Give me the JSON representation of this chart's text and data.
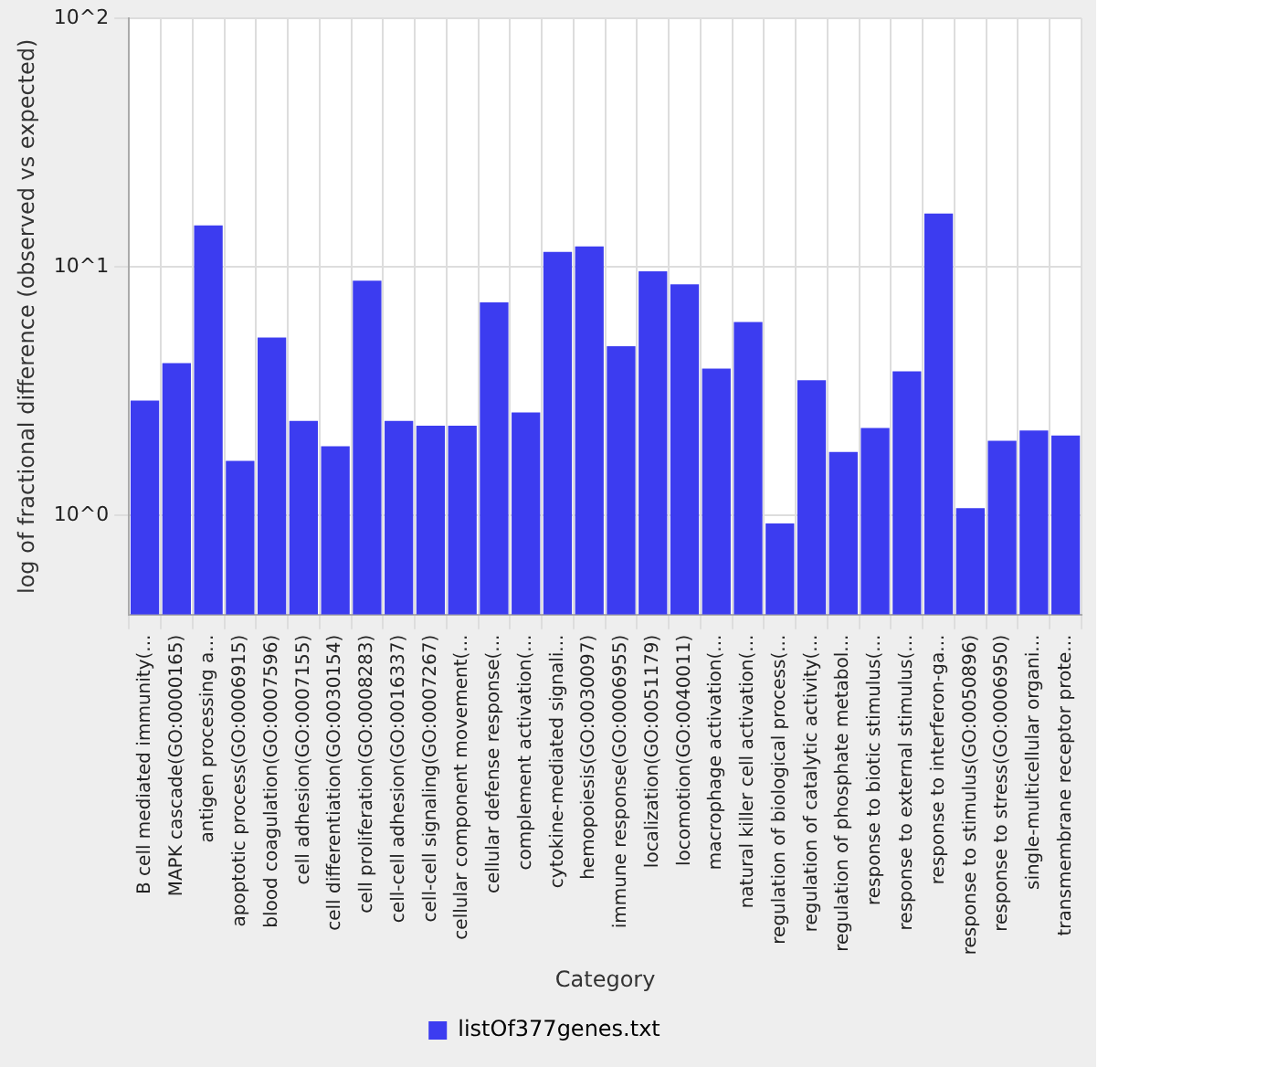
{
  "chart_data": {
    "type": "bar",
    "xlabel": "Category",
    "ylabel": "log of fractional difference (observed vs expected)",
    "categories": [
      "B cell mediated immunity(...",
      "MAPK cascade(GO:0000165)",
      "antigen processing a...",
      "apoptotic process(GO:0006915)",
      "blood coagulation(GO:0007596)",
      "cell adhesion(GO:0007155)",
      "cell differentiation(GO:0030154)",
      "cell proliferation(GO:0008283)",
      "cell-cell adhesion(GO:0016337)",
      "cell-cell signaling(GO:0007267)",
      "cellular component movement(...",
      "cellular defense response(...",
      "complement activation(...",
      "cytokine-mediated signali...",
      "hemopoiesis(GO:0030097)",
      "immune response(GO:0006955)",
      "localization(GO:0051179)",
      "locomotion(GO:0040011)",
      "macrophage activation(...",
      "natural killer cell activation(...",
      "regulation of biological process(...",
      "regulation of catalytic activity(...",
      "regulation of phosphate metabol...",
      "response to biotic stimulus(...",
      "response to external stimulus(...",
      "response to interferon-ga...",
      "response to stimulus(GO:0050896)",
      "response to stress(GO:0006950)",
      "single-multicellular organi...",
      "transmembrane receptor prote..."
    ],
    "series": [
      {
        "name": "listOf377genes.txt",
        "color": "#3c3cf0",
        "values": [
          2.9,
          4.1,
          14.7,
          1.66,
          5.2,
          2.4,
          1.9,
          8.8,
          2.4,
          2.3,
          2.3,
          7.2,
          2.6,
          11.5,
          12.1,
          4.8,
          9.6,
          8.5,
          3.9,
          6.0,
          0.93,
          3.5,
          1.8,
          2.25,
          3.8,
          16.4,
          1.07,
          2.0,
          2.2,
          2.1
        ]
      }
    ],
    "log": "y",
    "ylim": [
      0.4,
      100
    ],
    "yticks": [
      {
        "value": 1,
        "label": "10^0"
      },
      {
        "value": 10,
        "label": "10^1"
      },
      {
        "value": 100,
        "label": "10^2"
      }
    ],
    "grid": true,
    "legend": "bottom"
  }
}
